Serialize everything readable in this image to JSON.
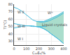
{
  "chart_data": {
    "type": "line",
    "xlabel": "C₁₂E₅/%",
    "ylabel": "T(°C)",
    "xlim": [
      0,
      400
    ],
    "ylim": [
      25,
      80
    ],
    "xticks": [
      0,
      100,
      200,
      300,
      400
    ],
    "yticks": [
      30,
      40,
      50,
      60,
      70,
      80
    ],
    "grid": true,
    "series": [
      {
        "type": "band",
        "color": "#aaddcc",
        "x": [
          180,
          210,
          240,
          270,
          300,
          350,
          400
        ],
        "lower": [
          50,
          49,
          47,
          44,
          40,
          34,
          27
        ],
        "upper": [
          57,
          57,
          57,
          59,
          61,
          65,
          70
        ]
      },
      {
        "type": "line",
        "color": "#44bbdd",
        "x": [
          0,
          30,
          60,
          90,
          120,
          150,
          180,
          210,
          240,
          270,
          300,
          350,
          400
        ],
        "values": [
          76,
          74,
          71,
          67,
          63,
          59,
          57,
          56,
          56,
          57,
          59,
          63,
          68
        ]
      },
      {
        "type": "line",
        "color": "#44bbdd",
        "x": [
          0,
          30,
          60,
          90,
          120,
          150,
          180,
          210,
          240,
          270,
          300,
          350,
          400
        ],
        "values": [
          48,
          49,
          50,
          51,
          51,
          51,
          50,
          49,
          47,
          44,
          40,
          34,
          27
        ]
      },
      {
        "type": "line",
        "color": "#44bbdd",
        "x": [
          0,
          30,
          60,
          90,
          120,
          150,
          180,
          210,
          240,
          260
        ],
        "values": [
          54,
          53,
          52,
          51,
          51,
          50,
          50,
          50,
          50,
          50
        ]
      },
      {
        "type": "line",
        "color": "#44bbdd",
        "x": [
          180,
          210,
          240,
          270,
          300,
          350,
          400
        ],
        "values": [
          57,
          57,
          57,
          59,
          61,
          65,
          70
        ]
      },
      {
        "type": "line",
        "color": "#44bbdd",
        "x": [
          180,
          210,
          240,
          270,
          300,
          350,
          400
        ],
        "values": [
          50,
          49,
          47,
          44,
          40,
          34,
          27
        ]
      }
    ],
    "annotations": [
      {
        "text": "W II",
        "x": 18,
        "y": 70
      },
      {
        "text": "W III",
        "x": 18,
        "y": 51
      },
      {
        "text": "W I",
        "x": 18,
        "y": 34
      },
      {
        "text": "Wᴵᵛ",
        "x": 260,
        "y": 69
      },
      {
        "text": "Liquid crystals",
        "x": 215,
        "y": 52
      }
    ]
  }
}
